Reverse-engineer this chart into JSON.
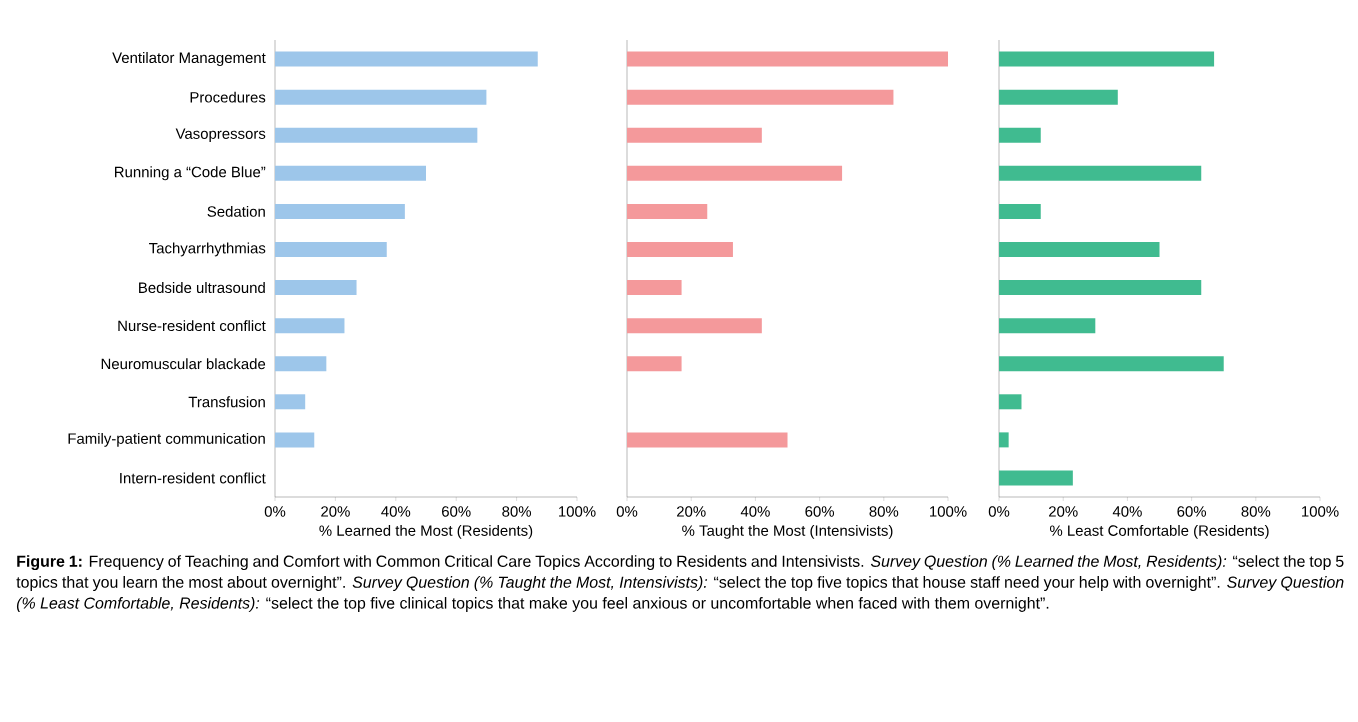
{
  "chart_data": [
    {
      "type": "bar",
      "orientation": "horizontal",
      "xlabel": "% Learned the Most (Residents)",
      "categories": [
        "Ventilator Management",
        "Procedures",
        "Vasopressors",
        "Running a “Code Blue”",
        "Sedation",
        "Tachyarrhythmias",
        "Bedside ultrasound",
        "Nurse-resident conflict",
        "Neuromuscular blackade",
        "Transfusion",
        "Family-patient communication",
        "Intern-resident conflict"
      ],
      "values": [
        87,
        70,
        67,
        50,
        43,
        37,
        27,
        23,
        17,
        10,
        13,
        0
      ],
      "color": "#9dc6ea",
      "xlim": [
        0,
        100
      ],
      "xticks": [
        {
          "value": 0,
          "label": "0%"
        },
        {
          "value": 20,
          "label": "20%"
        },
        {
          "value": 40,
          "label": "40%"
        },
        {
          "value": 60,
          "label": "60%"
        },
        {
          "value": 80,
          "label": "80%"
        },
        {
          "value": 100,
          "label": "100%"
        }
      ],
      "annotations": [
        "**Figure 1:** Frequency of Teaching and Comfort with Common Critical Care Topics According to Residents and Intensivists. *Survey Question (% Learned the Most, Residents):* “select the top 5 topics that you learn the most about overnight”. *Survey Question (% Taught the Most, Intensivists):* “select the top five topics that house staff need your help with overnight”. *Survey Question (% Least Comfortable, Residents):* “select the top five clinical topics that make you feel anxious or uncomfortable when faced with them overnight”."
      ]
    },
    {
      "type": "bar",
      "orientation": "horizontal",
      "xlabel": "% Taught the Most (Intensivists)",
      "tick_labels": "x",
      "categories": [
        null,
        null,
        null,
        null,
        null,
        null,
        null,
        null,
        null,
        null,
        null,
        null
      ],
      "values": [
        100,
        83,
        42,
        67,
        25,
        33,
        17,
        42,
        17,
        0,
        50,
        0
      ],
      "color": "#f4999b",
      "xlim": [
        0,
        100
      ],
      "xticks": [
        {
          "value": 0,
          "label": "0%"
        },
        {
          "value": 20,
          "label": "20%"
        },
        {
          "value": 40,
          "label": "40%"
        },
        {
          "value": 60,
          "label": "60%"
        },
        {
          "value": 80,
          "label": "80%"
        },
        {
          "value": 100,
          "label": "100%"
        }
      ]
    },
    {
      "type": "bar",
      "orientation": "horizontal",
      "xlabel": "% Least Comfortable (Residents)",
      "tick_labels": "x",
      "categories": [
        null,
        null,
        null,
        null,
        null,
        null,
        null,
        null,
        null,
        null,
        null,
        null
      ],
      "values": [
        67,
        37,
        13,
        63,
        13,
        50,
        63,
        30,
        70,
        7,
        3,
        23
      ],
      "color": "#40bb90",
      "xlim": [
        0,
        100
      ],
      "xticks": [
        {
          "value": 0,
          "label": "0%"
        },
        {
          "value": 20,
          "label": "20%"
        },
        {
          "value": 40,
          "label": "40%"
        },
        {
          "value": 60,
          "label": "60%"
        },
        {
          "value": 80,
          "label": "80%"
        },
        {
          "value": 100,
          "label": "100%"
        }
      ]
    }
  ]
}
